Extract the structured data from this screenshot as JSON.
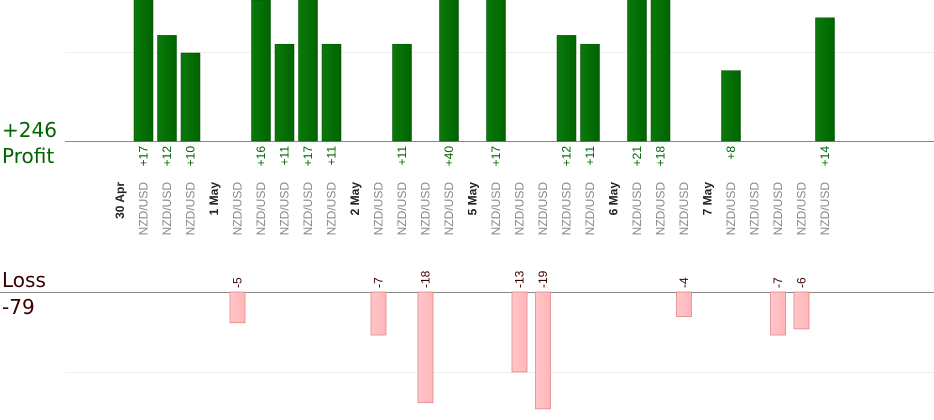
{
  "summary": {
    "profit_total": "+246",
    "profit_label": "Profit",
    "loss_label": "Loss",
    "loss_total": "-79"
  },
  "colors": {
    "profit_bar": "#006400",
    "loss_bar": "#ffb6b8",
    "profit_text": "#006400",
    "loss_text": "#3a0000",
    "pair_text": "#888888",
    "date_text": "#222222",
    "baseline": "#888888",
    "grid": "#eeeeee"
  },
  "chart_data": {
    "type": "bar",
    "axes": "none",
    "grid": "faint horizontal lines",
    "categories": [
      {
        "label": "30 Apr",
        "kind": "date"
      },
      {
        "label": "NZD/USD",
        "kind": "trade",
        "value": 17
      },
      {
        "label": "NZD/USD",
        "kind": "trade",
        "value": 12
      },
      {
        "label": "NZD/USD",
        "kind": "trade",
        "value": 10
      },
      {
        "label": "1 May",
        "kind": "date"
      },
      {
        "label": "NZD/USD",
        "kind": "trade",
        "value": -5
      },
      {
        "label": "NZD/USD",
        "kind": "trade",
        "value": 16
      },
      {
        "label": "NZD/USD",
        "kind": "trade",
        "value": 11
      },
      {
        "label": "NZD/USD",
        "kind": "trade",
        "value": 17
      },
      {
        "label": "NZD/USD",
        "kind": "trade",
        "value": 11
      },
      {
        "label": "2 May",
        "kind": "date"
      },
      {
        "label": "NZD/USD",
        "kind": "trade",
        "value": -7
      },
      {
        "label": "NZD/USD",
        "kind": "trade",
        "value": 11
      },
      {
        "label": "NZD/USD",
        "kind": "trade",
        "value": -18
      },
      {
        "label": "NZD/USD",
        "kind": "trade",
        "value": 40
      },
      {
        "label": "5 May",
        "kind": "date"
      },
      {
        "label": "NZD/USD",
        "kind": "trade",
        "value": 17
      },
      {
        "label": "NZD/USD",
        "kind": "trade",
        "value": -13
      },
      {
        "label": "NZD/USD",
        "kind": "trade",
        "value": -19
      },
      {
        "label": "NZD/USD",
        "kind": "trade",
        "value": 12
      },
      {
        "label": "NZD/USD",
        "kind": "trade",
        "value": 11
      },
      {
        "label": "6 May",
        "kind": "date"
      },
      {
        "label": "NZD/USD",
        "kind": "trade",
        "value": 21
      },
      {
        "label": "NZD/USD",
        "kind": "trade",
        "value": 18
      },
      {
        "label": "NZD/USD",
        "kind": "trade",
        "value": -4
      },
      {
        "label": "7 May",
        "kind": "date"
      },
      {
        "label": "NZD/USD",
        "kind": "trade",
        "value": 8
      },
      {
        "label": "NZD/USD",
        "kind": "trade",
        "value": 0
      },
      {
        "label": "NZD/USD",
        "kind": "trade",
        "value": -7
      },
      {
        "label": "NZD/USD",
        "kind": "trade",
        "value": -6
      },
      {
        "label": "NZD/USD",
        "kind": "trade",
        "value": 14
      }
    ]
  }
}
